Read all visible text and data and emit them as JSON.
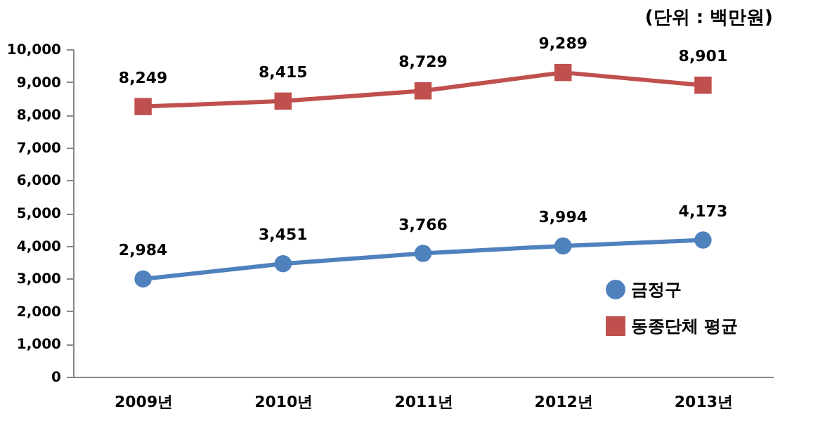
{
  "chart_data": {
    "type": "line",
    "annotations": [
      "(단위 : 백만원)"
    ],
    "categories": [
      "2009년",
      "2010년",
      "2011년",
      "2012년",
      "2013년"
    ],
    "series": [
      {
        "name": "금정구",
        "color": "#4f81bd",
        "marker": "circle",
        "values": [
          2984,
          3451,
          3766,
          3994,
          4173
        ],
        "value_labels": [
          "2,984",
          "3,451",
          "3,766",
          "3,994",
          "4,173"
        ]
      },
      {
        "name": "동종단체 평균",
        "color": "#c0504d",
        "marker": "square",
        "values": [
          8249,
          8415,
          8729,
          9289,
          8901
        ],
        "value_labels": [
          "8,249",
          "8,415",
          "8,729",
          "9,289",
          "8,901"
        ]
      }
    ],
    "ylim": [
      0,
      10000
    ],
    "yticks": [
      0,
      {
        "value": 1000,
        "label": "1,000"
      },
      {
        "value": 2000,
        "label": "2,000"
      },
      {
        "value": 3000,
        "label": "3,000"
      },
      {
        "value": 4000,
        "label": "4,000"
      },
      {
        "value": 5000,
        "label": "5,000"
      },
      {
        "value": 6000,
        "label": "6,000"
      },
      {
        "value": 7000,
        "label": "7,000"
      },
      {
        "value": 8000,
        "label": "8,000"
      },
      {
        "value": 9000,
        "label": "9,000"
      },
      {
        "value": 10000,
        "label": "10,000"
      }
    ],
    "grid": false,
    "legend": "bottom right",
    "line_style": "solid"
  }
}
